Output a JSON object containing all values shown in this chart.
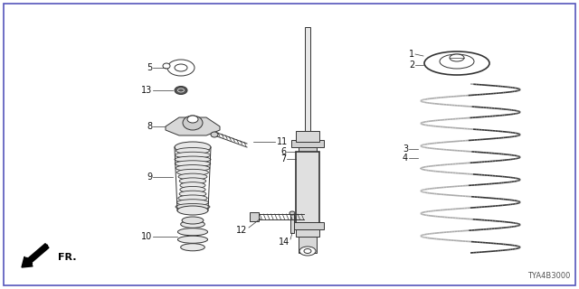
{
  "background_color": "#ffffff",
  "line_color": "#333333",
  "diagram_code": "TYA4B3000",
  "fr_label": "FR.",
  "figsize": [
    6.4,
    3.2
  ],
  "dpi": 100
}
